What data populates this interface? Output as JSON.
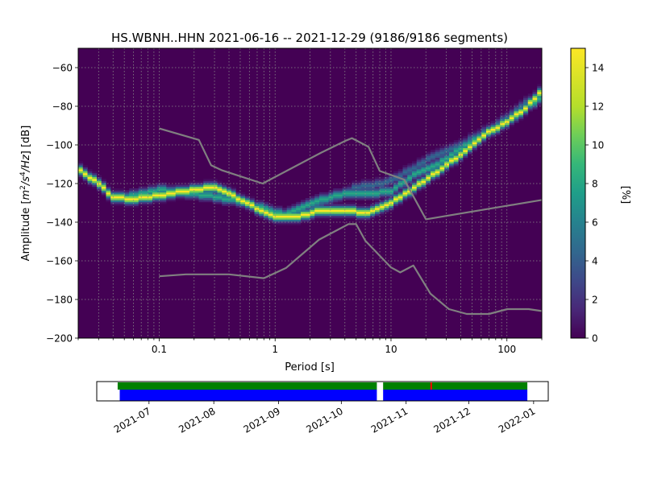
{
  "chart_data": [
    {
      "type": "heatmap",
      "title": "HS.WBNH..HHN   2021-06-16 -- 2021-12-29  (9186/9186 segments)",
      "xlabel": "Period [s]",
      "ylabel": "Amplitude [m²/s⁴/Hz] [dB]",
      "ylabel_parts": {
        "pre": "Amplitude [",
        "m": "m",
        "two": "2",
        "mid": "/s",
        "four": "4",
        "hz": "/Hz",
        "post": "] [dB]"
      },
      "x_scale": "log",
      "xlim": [
        0.02,
        200
      ],
      "ylim": [
        -200,
        -50
      ],
      "x_ticks": [
        {
          "value": 0.1,
          "label": "0.1"
        },
        {
          "value": 1,
          "label": "1"
        },
        {
          "value": 10,
          "label": "10"
        },
        {
          "value": 100,
          "label": "100"
        }
      ],
      "y_ticks": [
        {
          "value": -60,
          "label": "−60"
        },
        {
          "value": -80,
          "label": "−80"
        },
        {
          "value": -100,
          "label": "−100"
        },
        {
          "value": -120,
          "label": "−120"
        },
        {
          "value": -140,
          "label": "−140"
        },
        {
          "value": -160,
          "label": "−160"
        },
        {
          "value": -180,
          "label": "−180"
        },
        {
          "value": -200,
          "label": "−200"
        }
      ],
      "grid": true,
      "colorbar": {
        "label": "[%]",
        "range": [
          0,
          15
        ],
        "ticks": [
          {
            "value": 0,
            "label": "0"
          },
          {
            "value": 2,
            "label": "2"
          },
          {
            "value": 4,
            "label": "4"
          },
          {
            "value": 6,
            "label": "6"
          },
          {
            "value": 8,
            "label": "8"
          },
          {
            "value": 10,
            "label": "10"
          },
          {
            "value": 12,
            "label": "12"
          },
          {
            "value": 14,
            "label": "14"
          }
        ],
        "colormap": "viridis"
      },
      "colors": {
        "background": "#440154",
        "noise_model": "#808080"
      },
      "density_ridges": [
        {
          "points": [
            [
              0.02,
              -112
            ],
            [
              0.03,
              -120
            ],
            [
              0.04,
              -127
            ],
            [
              0.06,
              -128
            ],
            [
              0.1,
              -126
            ],
            [
              0.2,
              -123
            ],
            [
              0.3,
              -122
            ],
            [
              0.5,
              -128
            ],
            [
              0.8,
              -135
            ],
            [
              1.0,
              -137
            ],
            [
              1.5,
              -137
            ],
            [
              2.5,
              -134
            ],
            [
              4,
              -134
            ],
            [
              6,
              -135
            ],
            [
              8,
              -133
            ],
            [
              12,
              -127
            ],
            [
              20,
              -118
            ],
            [
              40,
              -105
            ],
            [
              70,
              -93
            ],
            [
              100,
              -88
            ],
            [
              150,
              -80
            ],
            [
              200,
              -72
            ]
          ],
          "peak": 15
        },
        {
          "points": [
            [
              0.05,
              -127
            ],
            [
              0.1,
              -123
            ],
            [
              0.2,
              -125
            ],
            [
              0.5,
              -129
            ],
            [
              1.2,
              -136
            ],
            [
              2,
              -130
            ],
            [
              4,
              -125
            ],
            [
              6,
              -125
            ],
            [
              10,
              -124
            ],
            [
              15,
              -116
            ],
            [
              25,
              -110
            ],
            [
              50,
              -98
            ],
            [
              100,
              -88
            ],
            [
              200,
              -75
            ]
          ],
          "peak": 9
        },
        {
          "points": [
            [
              2,
              -133
            ],
            [
              3,
              -128
            ],
            [
              5,
              -122
            ],
            [
              8,
              -120
            ],
            [
              12,
              -116
            ],
            [
              20,
              -108
            ],
            [
              40,
              -100
            ],
            [
              80,
              -90
            ],
            [
              200,
              -72
            ]
          ],
          "peak": 5
        }
      ],
      "series": [
        {
          "name": "",
          "x": [
            0.1,
            0.22,
            0.28,
            0.35,
            0.78,
            2.5,
            4,
            4.6,
            6.4,
            8,
            13,
            20,
            200
          ],
          "y": [
            -91.5,
            -97.4,
            -110.5,
            -113.2,
            -120,
            -104,
            -98,
            -96.5,
            -101,
            -113.5,
            -118,
            -138.5,
            -128.5
          ]
        },
        {
          "name": "",
          "x": [
            0.1,
            0.17,
            0.4,
            0.8,
            1.24,
            2.4,
            4.3,
            5.0,
            6.0,
            10,
            12,
            15.6,
            21.9,
            31.6,
            45,
            70,
            101,
            154,
            200
          ],
          "y": [
            -168,
            -167,
            -167,
            -169,
            -163.7,
            -149,
            -141,
            -141,
            -149.6,
            -163.4,
            -166,
            -162.4,
            -177,
            -185,
            -187.5,
            -187.5,
            -185,
            -185,
            -186
          ]
        }
      ]
    },
    {
      "type": "bar",
      "x_ticks": [
        "2021-07",
        "2021-08",
        "2021-09",
        "2021-10",
        "2021-11",
        "2021-12",
        "2022-01"
      ],
      "x_tick_dates": [
        "2021-07-01",
        "2021-08-01",
        "2021-09-01",
        "2021-10-01",
        "2021-11-01",
        "2021-12-01",
        "2022-01-01"
      ],
      "xlim": [
        "2021-06-06",
        "2022-01-08"
      ],
      "green_segments": [
        [
          "2021-06-16",
          "2021-10-18"
        ],
        [
          "2021-10-21",
          "2021-12-29"
        ]
      ],
      "blue_segments": [
        [
          "2021-06-17",
          "2021-10-18"
        ],
        [
          "2021-10-21",
          "2021-12-29"
        ]
      ],
      "red_markers": [
        "2021-11-13"
      ],
      "colors": {
        "green": "#008000",
        "blue": "#0000ff",
        "red": "#ff0000"
      }
    }
  ]
}
